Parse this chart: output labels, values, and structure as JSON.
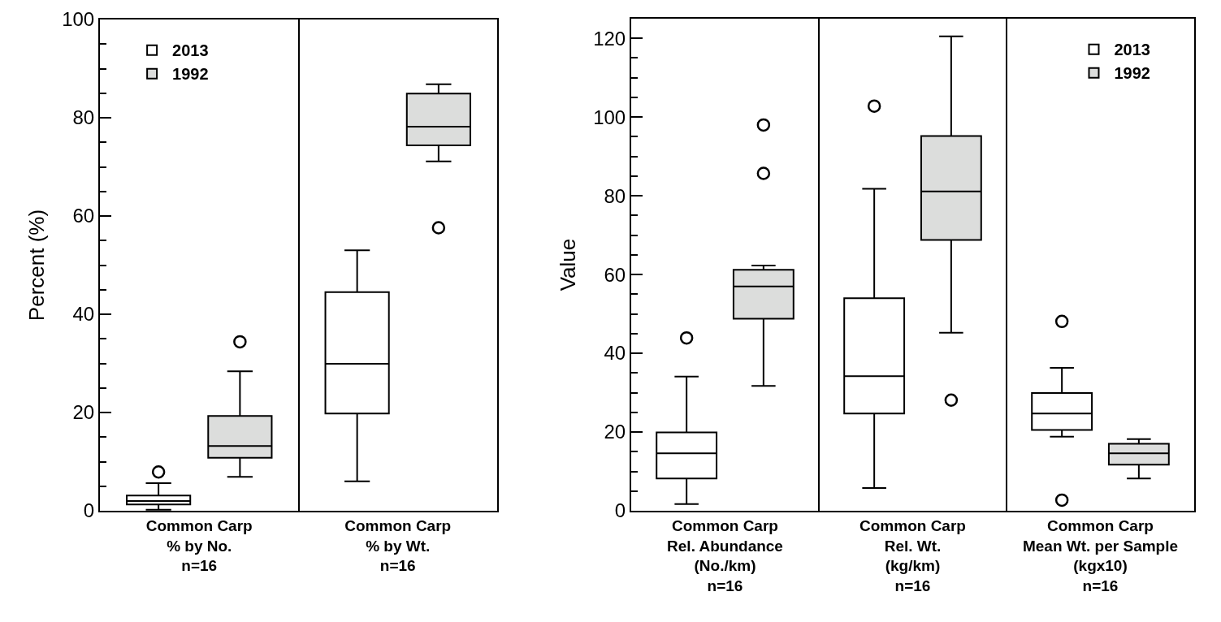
{
  "chart_data": [
    {
      "type": "box",
      "ylabel": "Percent (%)",
      "categories": [
        "Common Carp\n% by No.\nn=16",
        "Common Carp\n% by Wt.\nn=16"
      ],
      "ylim": [
        0,
        100
      ],
      "yticks": [
        0,
        20,
        40,
        60,
        80,
        100
      ],
      "grid": "x",
      "legend": "top left",
      "series": [
        {
          "name": "2013",
          "color": "#ffffff",
          "boxes": [
            {
              "low": 0.2,
              "q1": 1.3,
              "median": 2.0,
              "q3": 3.1,
              "high": 5.6,
              "outliers": [
                7.9
              ]
            },
            {
              "low": 6.0,
              "q1": 19.8,
              "median": 29.9,
              "q3": 44.5,
              "high": 53.0
            }
          ]
        },
        {
          "name": "1992",
          "color": "#dcdddc",
          "boxes": [
            {
              "low": 6.9,
              "q1": 10.8,
              "median": 13.2,
              "q3": 19.3,
              "high": 28.4,
              "outliers": [
                34.4
              ]
            },
            {
              "low": 71.1,
              "q1": 74.4,
              "median": 78.2,
              "q3": 84.9,
              "high": 86.8,
              "outliers": [
                57.6
              ]
            }
          ]
        }
      ]
    },
    {
      "type": "box",
      "ylabel": "Value",
      "categories": [
        "Common Carp\nRel. Abundance\n(No./km)\nn=16",
        "Common Carp\nRel. Wt.\n(kg/km)\nn=16",
        "Common Carp\nMean Wt. per Sample\n(kgx10)\nn=16"
      ],
      "ylim": [
        0,
        125
      ],
      "yticks": [
        0,
        20,
        40,
        60,
        80,
        100,
        120
      ],
      "grid": "x",
      "legend": "top right",
      "series": [
        {
          "name": "2013",
          "color": "#ffffff",
          "boxes": [
            {
              "low": 1.7,
              "q1": 8.2,
              "median": 14.6,
              "q3": 19.9,
              "high": 34.1,
              "outliers": [
                43.9
              ]
            },
            {
              "low": 5.8,
              "q1": 24.7,
              "median": 34.2,
              "q3": 54.0,
              "high": 81.8,
              "outliers": [
                102.8
              ]
            },
            {
              "low": 18.8,
              "q1": 20.5,
              "median": 24.7,
              "q3": 29.9,
              "high": 36.3,
              "outliers": [
                48.1,
                2.7
              ]
            }
          ]
        },
        {
          "name": "1992",
          "color": "#dcdddc",
          "boxes": [
            {
              "low": 31.7,
              "q1": 48.8,
              "median": 57.0,
              "q3": 61.2,
              "high": 62.3,
              "outliers": [
                85.7,
                98.0
              ]
            },
            {
              "low": 45.2,
              "q1": 68.8,
              "median": 81.1,
              "q3": 95.2,
              "high": 120.5,
              "outliers": [
                28.1
              ]
            },
            {
              "low": 8.2,
              "q1": 11.7,
              "median": 14.6,
              "q3": 17.0,
              "high": 18.2
            }
          ]
        }
      ]
    }
  ]
}
